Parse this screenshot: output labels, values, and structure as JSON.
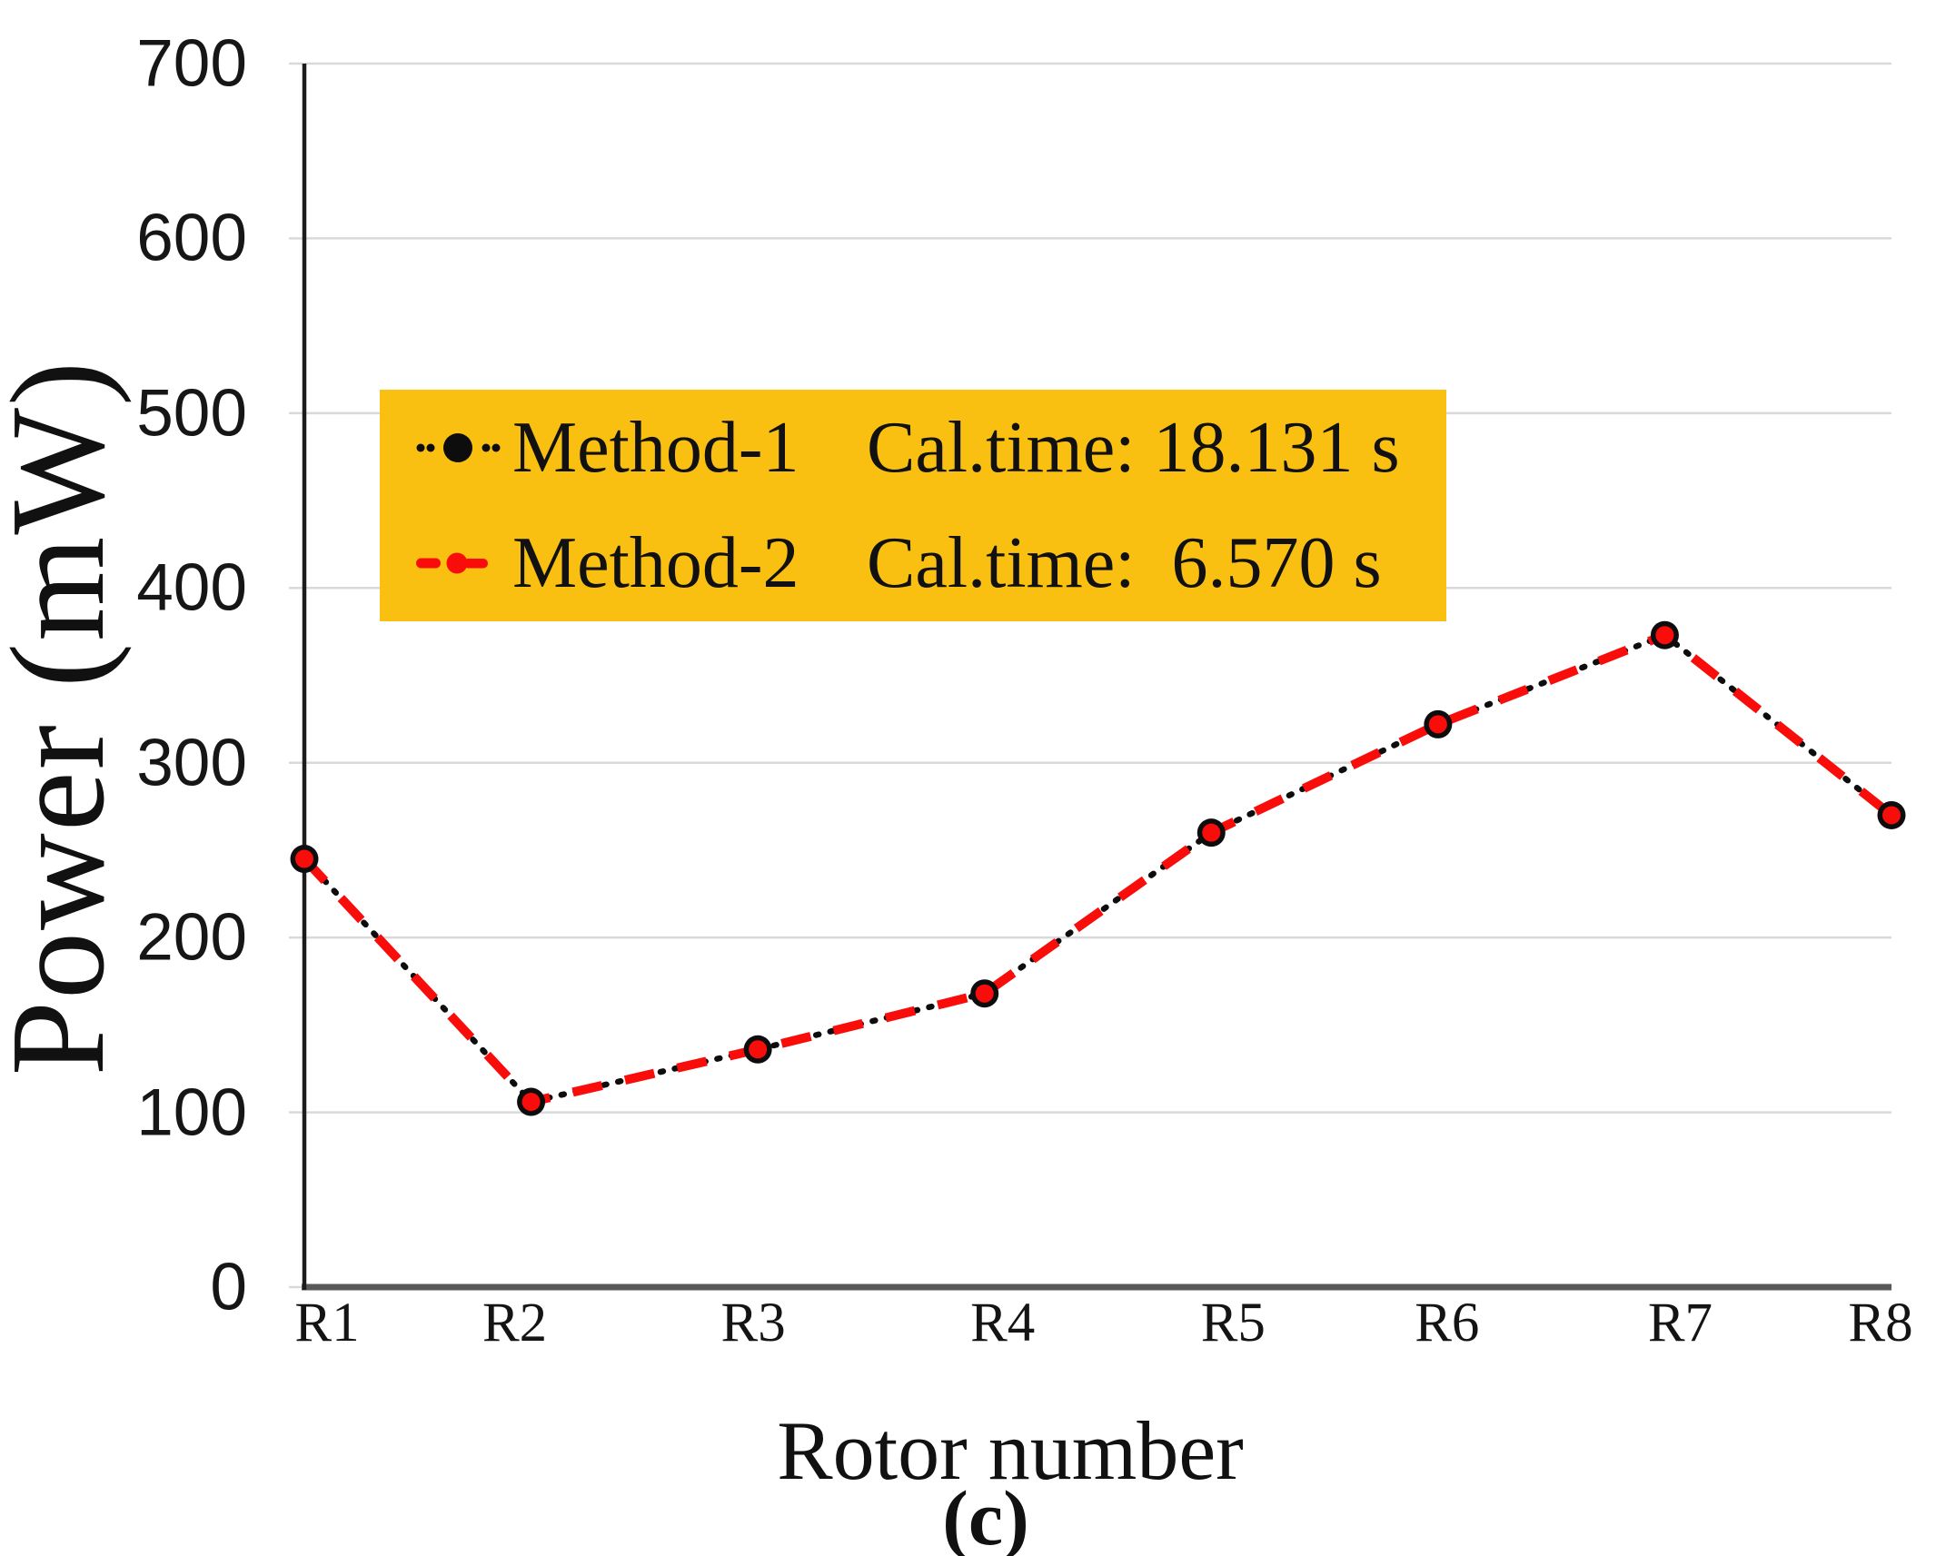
{
  "colors": {
    "legend_bg": "#FAC011",
    "method1": "#0D0D0D",
    "method2": "#F90D0B",
    "gridline": "#D9D9D9",
    "x_axis_line": "#595959",
    "y_axis_line": "#1C1C1C",
    "text": "#141414"
  },
  "y_axis": {
    "title": "Power (mW)",
    "ticks": [
      "0",
      "100",
      "200",
      "300",
      "400",
      "500",
      "600",
      "700"
    ]
  },
  "x_axis": {
    "title": "Rotor number",
    "ticks": [
      "R1",
      "R2",
      "R3",
      "R4",
      "R5",
      "R6",
      "R7",
      "R8"
    ]
  },
  "caption": {
    "text": "(c)"
  },
  "legend": {
    "rows": [
      {
        "method": "Method-1",
        "cal": "Cal.time: 18.131 s"
      },
      {
        "method": "Method-2",
        "cal": "Cal.time:  6.570 s"
      }
    ]
  },
  "chart_data": {
    "type": "line",
    "title": "",
    "categories": [
      "R1",
      "R2",
      "R3",
      "R4",
      "R5",
      "R6",
      "R7",
      "R8"
    ],
    "series": [
      {
        "name": "Method-1",
        "cal_time_seconds": 18.131,
        "color": "#0D0D0D",
        "line_style": "dash-dot",
        "marker": "filled-black-circle",
        "values": [
          245,
          106,
          136,
          168,
          260,
          322,
          373,
          270
        ]
      },
      {
        "name": "Method-2",
        "cal_time_seconds": 6.57,
        "color": "#F90D0B",
        "line_style": "dashed",
        "marker": "filled-red-circle",
        "values": [
          245,
          106,
          136,
          168,
          260,
          322,
          373,
          270
        ]
      }
    ],
    "xlabel": "Rotor number",
    "ylabel": "Power (mW)",
    "ylim": [
      0,
      700
    ],
    "ytick_step": 100,
    "grid": "horizontal",
    "legend_position": "inside-upper-left",
    "note": "Method-1 and Method-2 curves coincide at all points"
  }
}
